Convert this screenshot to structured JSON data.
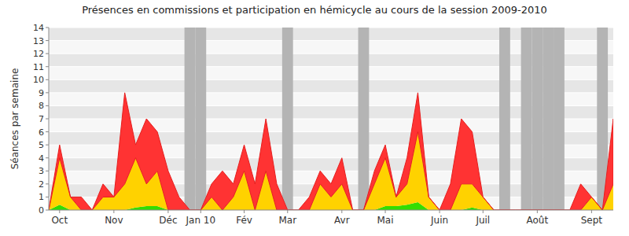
{
  "chart_data": {
    "type": "area",
    "stacked": true,
    "grid": true,
    "title": "Présences en commissions et participation en hémicycle au cours de la session 2009-2010",
    "y_label": "Séances par semaine",
    "categories": [
      null,
      "Oct",
      null,
      null,
      null,
      null,
      "Nov",
      null,
      null,
      null,
      null,
      "Déc",
      null,
      null,
      "Jan 10",
      null,
      null,
      null,
      "Fév",
      null,
      null,
      null,
      "Mar",
      null,
      null,
      null,
      null,
      "Avr",
      null,
      null,
      null,
      "Mai",
      null,
      null,
      null,
      null,
      "Juin",
      null,
      null,
      null,
      "Juil",
      null,
      null,
      null,
      null,
      "Août",
      null,
      null,
      null,
      null,
      "Sept",
      null,
      null
    ],
    "series": [
      {
        "color": "#33dd00",
        "values": [
          0,
          0.4,
          0,
          0,
          0,
          0,
          0,
          0,
          0.2,
          0.3,
          0.3,
          0,
          0,
          0,
          0,
          0,
          0,
          0,
          0,
          0,
          0,
          0,
          0,
          0,
          0,
          0,
          0,
          0,
          0,
          0,
          0,
          0.3,
          0.3,
          0.4,
          0.6,
          0,
          0,
          0,
          0,
          0.2,
          0,
          0,
          0,
          0,
          0,
          0,
          0,
          0,
          0,
          0,
          0,
          0,
          0
        ]
      },
      {
        "color": "#ffd200",
        "values": [
          0,
          3.6,
          1,
          0,
          0,
          1,
          1,
          2,
          3.8,
          1.7,
          2.7,
          0,
          0,
          0,
          0,
          1,
          0,
          1,
          3,
          0,
          3,
          0,
          0,
          0,
          0,
          2,
          1,
          2,
          0,
          0,
          2,
          3.7,
          0.7,
          1.6,
          5.4,
          1,
          0,
          0,
          2,
          1.8,
          1,
          0,
          0,
          0,
          0,
          0,
          0,
          0,
          0,
          0,
          1,
          0,
          2
        ]
      },
      {
        "color": "#ff3333",
        "values": [
          0,
          1,
          0,
          1,
          0,
          1,
          0,
          7,
          1,
          5,
          3,
          3,
          1,
          0,
          0,
          1,
          3,
          1,
          2,
          2,
          4,
          2,
          0,
          0,
          1,
          1,
          1,
          2,
          0,
          0,
          1,
          1,
          0,
          2,
          3,
          0,
          0,
          2,
          5,
          4,
          0,
          0,
          0,
          0,
          0,
          0,
          0,
          0,
          0,
          2,
          0,
          0,
          5
        ]
      }
    ],
    "recess_weeks": [
      13,
      14,
      22,
      29,
      42,
      44,
      45,
      46,
      47,
      51
    ],
    "ylim": [
      0,
      14
    ],
    "yticks": [
      0,
      1,
      2,
      3,
      4,
      5,
      6,
      7,
      8,
      9,
      10,
      11,
      12,
      13,
      14
    ]
  }
}
